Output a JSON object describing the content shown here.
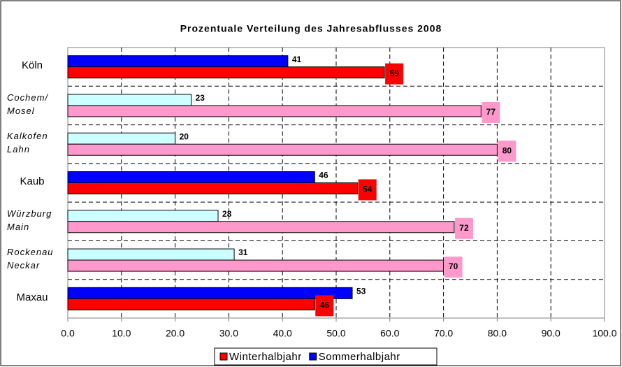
{
  "chart_data": {
    "type": "hbar",
    "title": "Prozentuale Verteilung des Jahresabflusses 2008",
    "categories": [
      "Köln",
      "Cochem/\nMosel",
      "Kalkofen\nLahn",
      "Kaub",
      "Würzburg\nMain",
      "Rockenau\nNeckar",
      "Maxau"
    ],
    "category_italic": [
      false,
      true,
      true,
      false,
      true,
      true,
      false
    ],
    "series": [
      {
        "name": "Winterhalbjahr",
        "color": "#ff0000",
        "values": [
          59,
          77,
          80,
          54,
          72,
          70,
          46
        ],
        "colors": [
          "#ff0000",
          "#ff99cc",
          "#ff99cc",
          "#ff0000",
          "#ff99cc",
          "#ff99cc",
          "#ff0000"
        ]
      },
      {
        "name": "Sommerhalbjahr",
        "color": "#0000ff",
        "values": [
          41,
          23,
          20,
          46,
          28,
          31,
          53
        ],
        "colors": [
          "#0000ff",
          "#ccffff",
          "#ccffff",
          "#0000ff",
          "#ccffff",
          "#ccffff",
          "#0000ff"
        ]
      }
    ],
    "xlim": [
      0,
      100
    ],
    "xticks": [
      {
        "value": 0,
        "label": "0.0"
      },
      {
        "value": 10,
        "label": "10.0"
      },
      {
        "value": 20,
        "label": "20.0"
      },
      {
        "value": 30,
        "label": "30.0"
      },
      {
        "value": 40,
        "label": "40.0"
      },
      {
        "value": 50,
        "label": "50.0"
      },
      {
        "value": 60,
        "label": "60.0"
      },
      {
        "value": 70,
        "label": "70.0"
      },
      {
        "value": 80,
        "label": "80.0"
      },
      {
        "value": 90,
        "label": "90.0"
      },
      {
        "value": 100,
        "label": "100.0"
      }
    ],
    "grid": true,
    "legend": "bottom"
  }
}
